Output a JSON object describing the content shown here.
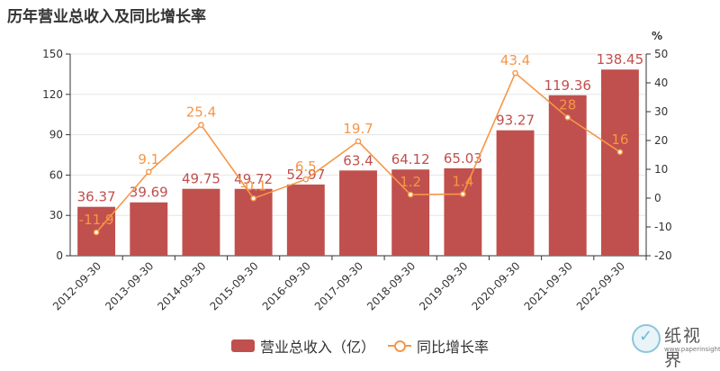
{
  "header": {
    "title": "历年营业总收入及同比增长率"
  },
  "legend": {
    "bar_label": "营业总收入（亿）",
    "line_label": "同比增长率"
  },
  "watermark": {
    "text": "纸视界",
    "url": "www.paperinsight.net"
  },
  "colors": {
    "bar": "#c0504d",
    "line": "#f79646",
    "axis": "#333333",
    "grid": "#e5e5e5"
  },
  "chart_data": {
    "type": "bar",
    "title": "历年营业总收入及同比增长率",
    "categories": [
      "2012-09-30",
      "2013-09-30",
      "2014-09-30",
      "2015-09-30",
      "2016-09-30",
      "2017-09-30",
      "2018-09-30",
      "2019-09-30",
      "2020-09-30",
      "2021-09-30",
      "2022-09-30"
    ],
    "series": [
      {
        "name": "营业总收入（亿）",
        "type": "bar",
        "axis": "left",
        "values": [
          36.37,
          39.69,
          49.75,
          49.72,
          52.97,
          63.4,
          64.12,
          65.03,
          93.27,
          119.36,
          138.45
        ]
      },
      {
        "name": "同比增长率",
        "type": "line",
        "axis": "right",
        "values": [
          -11.9,
          9.1,
          25.4,
          -0.1,
          6.5,
          19.7,
          1.2,
          1.4,
          43.4,
          28,
          16
        ]
      }
    ],
    "left_axis": {
      "ylim": [
        0,
        150
      ],
      "ticks": [
        0,
        30,
        60,
        90,
        120,
        150
      ]
    },
    "right_axis": {
      "label": "%",
      "ylim": [
        -20,
        50
      ],
      "ticks": [
        -20,
        -10,
        0,
        10,
        20,
        30,
        40,
        50
      ]
    },
    "grid": true,
    "legend_position": "bottom-center"
  }
}
